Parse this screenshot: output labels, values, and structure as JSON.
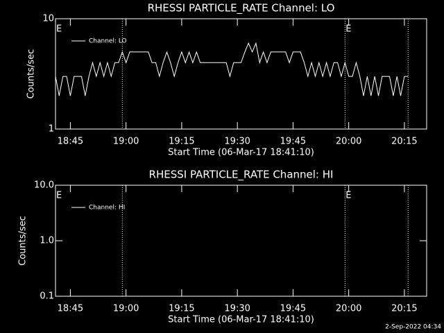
{
  "chart_data": [
    {
      "type": "line",
      "title": "RHESSI PARTICLE_RATE Channel: LO",
      "x_label": "Start Time (06-Mar-17 18:41:10)",
      "y_label": "Counts/sec",
      "ylog": true,
      "ylim": [
        1,
        10
      ],
      "yticks": [
        1,
        10
      ],
      "xlim": [
        "18:41",
        "20:21"
      ],
      "xticks": [
        "18:45",
        "19:00",
        "19:15",
        "19:30",
        "19:45",
        "20:00",
        "20:15"
      ],
      "vlines": [
        "18:59",
        "19:59",
        "20:16"
      ],
      "annotations": [
        {
          "text": "E",
          "x": "18:41"
        },
        {
          "text": "E",
          "x": "19:59"
        }
      ],
      "x": [
        "18:41",
        "18:42",
        "18:43",
        "18:44",
        "18:45",
        "18:46",
        "18:47",
        "18:48",
        "18:49",
        "18:50",
        "18:51",
        "18:52",
        "18:53",
        "18:54",
        "18:55",
        "18:56",
        "18:57",
        "18:58",
        "18:59",
        "19:00",
        "19:01",
        "19:02",
        "19:03",
        "19:04",
        "19:05",
        "19:06",
        "19:07",
        "19:08",
        "19:09",
        "19:10",
        "19:11",
        "19:12",
        "19:13",
        "19:14",
        "19:15",
        "19:16",
        "19:17",
        "19:18",
        "19:19",
        "19:20",
        "19:21",
        "19:22",
        "19:23",
        "19:24",
        "19:25",
        "19:26",
        "19:27",
        "19:28",
        "19:29",
        "19:30",
        "19:31",
        "19:32",
        "19:33",
        "19:34",
        "19:35",
        "19:36",
        "19:37",
        "19:38",
        "19:39",
        "19:40",
        "19:41",
        "19:42",
        "19:43",
        "19:44",
        "19:45",
        "19:46",
        "19:47",
        "19:48",
        "19:49",
        "19:50",
        "19:51",
        "19:52",
        "19:53",
        "19:54",
        "19:55",
        "19:56",
        "19:57",
        "19:58",
        "19:59",
        "20:00",
        "20:01",
        "20:02",
        "20:03",
        "20:04",
        "20:05",
        "20:06",
        "20:07",
        "20:08",
        "20:09",
        "20:10",
        "20:11",
        "20:12",
        "20:13",
        "20:14",
        "20:15",
        "20:16"
      ],
      "series": [
        {
          "name": "Channel: LO",
          "color": "#ffffff",
          "values": [
            3,
            2,
            3,
            3,
            2,
            3,
            3,
            3,
            2,
            3,
            4,
            3,
            4,
            3,
            4,
            3,
            4,
            4,
            5,
            4,
            5,
            5,
            5,
            5,
            5,
            5,
            4,
            4,
            3,
            4,
            5,
            4,
            3,
            4,
            5,
            4,
            5,
            4,
            5,
            4,
            4,
            4,
            4,
            4,
            4,
            4,
            4,
            3,
            4,
            4,
            4,
            5,
            6,
            5,
            6,
            4,
            5,
            4,
            5,
            5,
            5,
            5,
            5,
            4,
            5,
            5,
            5,
            4,
            3,
            4,
            3,
            4,
            3,
            4,
            3,
            4,
            4,
            3,
            4,
            3,
            3,
            4,
            3,
            2,
            3,
            2,
            3,
            2,
            3,
            3,
            3,
            2,
            3,
            2,
            3,
            3
          ]
        }
      ]
    },
    {
      "type": "line",
      "title": "RHESSI PARTICLE_RATE Channel: HI",
      "x_label": "Start Time (06-Mar-17 18:41:10)",
      "y_label": "Counts/sec",
      "ylog": true,
      "ylim": [
        0.1,
        10
      ],
      "yticks": [
        0.1,
        {
          "value": 1,
          "label": "1.0"
        },
        {
          "value": 10,
          "label": "10.0"
        }
      ],
      "xlim": [
        "18:41",
        "20:21"
      ],
      "xticks": [
        "18:45",
        "19:00",
        "19:15",
        "19:30",
        "19:45",
        "20:00",
        "20:15"
      ],
      "vlines": [
        "18:59",
        "19:59",
        "20:16"
      ],
      "annotations": [
        {
          "text": "E",
          "x": "18:41"
        },
        {
          "text": "E",
          "x": "19:59"
        }
      ],
      "x": [],
      "series": [
        {
          "name": "Channel: HI",
          "color": "#ffffff",
          "values": []
        }
      ]
    }
  ],
  "footer": "2-Sep-2022 04:34"
}
